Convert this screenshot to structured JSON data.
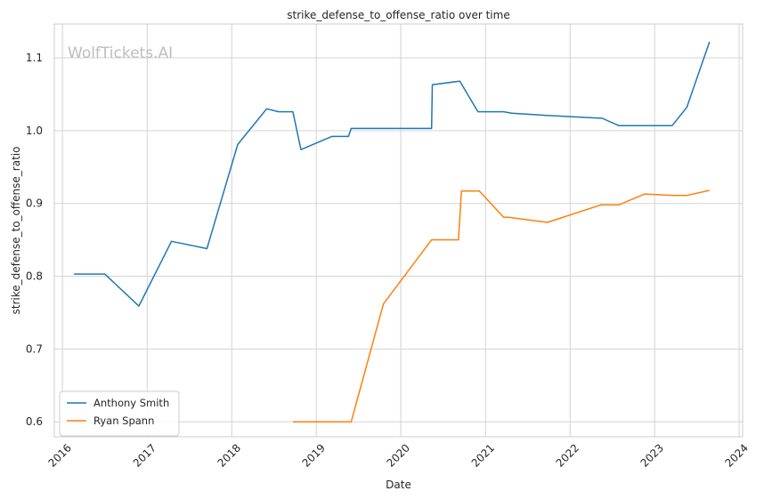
{
  "chart_data": {
    "type": "line",
    "title": "strike_defense_to_offense_ratio over time",
    "xlabel": "Date",
    "ylabel": "strike_defense_to_offense_ratio",
    "watermark": "WolfTickets.AI",
    "xlim": [
      "2015-11-27",
      "2024-01-16"
    ],
    "ylim": [
      0.5795,
      1.1465
    ],
    "x_ticks": [
      "2016",
      "2017",
      "2018",
      "2019",
      "2020",
      "2021",
      "2022",
      "2023",
      "2024"
    ],
    "y_ticks": [
      "0.6",
      "0.7",
      "0.8",
      "0.9",
      "1.0",
      "1.1"
    ],
    "grid": true,
    "legend_position": "bottom-left",
    "series": [
      {
        "name": "Anthony Smith",
        "color": "#1f77b4",
        "x": [
          "2016-02-20",
          "2016-07-02",
          "2016-11-26",
          "2017-04-16",
          "2017-09-16",
          "2018-01-27",
          "2018-06-01",
          "2018-07-22",
          "2018-09-22",
          "2018-10-27",
          "2019-03-09",
          "2019-05-20",
          "2019-06-01",
          "2020-05-13",
          "2020-05-16",
          "2020-09-12",
          "2020-11-29",
          "2021-03-20",
          "2021-04-24",
          "2021-09-20",
          "2022-05-20",
          "2022-07-30",
          "2023-03-18",
          "2023-05-20",
          "2023-08-26"
        ],
        "y": [
          0.803,
          0.803,
          0.759,
          0.848,
          0.838,
          0.981,
          1.03,
          1.026,
          1.026,
          0.974,
          0.992,
          0.992,
          1.003,
          1.003,
          1.063,
          1.068,
          1.026,
          1.026,
          1.024,
          1.021,
          1.017,
          1.007,
          1.007,
          1.032,
          1.122
        ]
      },
      {
        "name": "Ryan Spann",
        "color": "#ff7f0e",
        "x": [
          "2018-09-22",
          "2019-06-01",
          "2019-10-18",
          "2020-05-13",
          "2020-09-06",
          "2020-09-19",
          "2020-12-05",
          "2021-03-20",
          "2021-04-10",
          "2021-09-25",
          "2022-05-14",
          "2022-07-30",
          "2022-11-19",
          "2023-03-25",
          "2023-05-20",
          "2023-08-26"
        ],
        "y": [
          0.6,
          0.6,
          0.762,
          0.85,
          0.85,
          0.917,
          0.917,
          0.881,
          0.881,
          0.874,
          0.898,
          0.898,
          0.913,
          0.911,
          0.911,
          0.918
        ]
      }
    ]
  }
}
